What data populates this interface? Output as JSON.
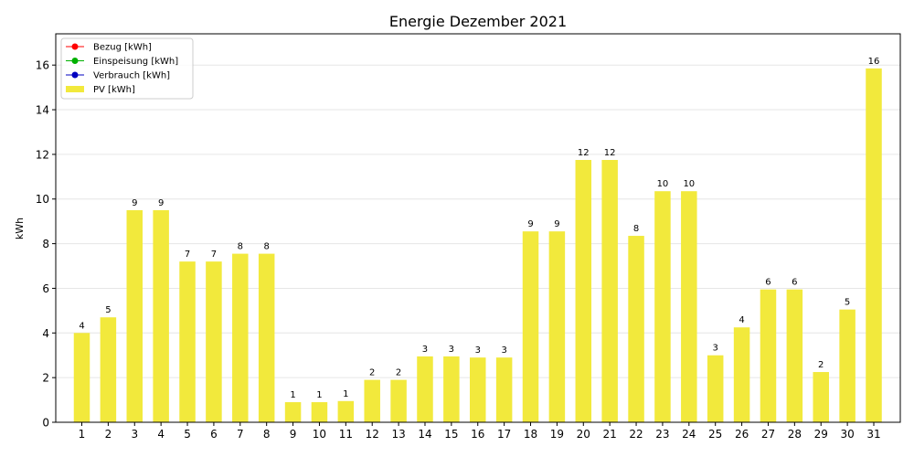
{
  "chart_data": {
    "type": "bar",
    "title": "Energie Dezember 2021",
    "xlabel": "",
    "ylabel": "kWh",
    "ylim": [
      0,
      17.4
    ],
    "yticks": [
      0,
      2,
      4,
      6,
      8,
      10,
      12,
      14,
      16
    ],
    "grid": "horizontal",
    "legend_position": "top-left",
    "categories": [
      "1",
      "2",
      "3",
      "4",
      "5",
      "6",
      "7",
      "8",
      "9",
      "10",
      "11",
      "12",
      "13",
      "14",
      "15",
      "16",
      "17",
      "18",
      "19",
      "20",
      "21",
      "22",
      "23",
      "24",
      "25",
      "26",
      "27",
      "28",
      "29",
      "30",
      "31"
    ],
    "series": [
      {
        "name": "PV [kWh]",
        "color": "#f2e93c",
        "values": [
          4.0,
          4.7,
          9.5,
          9.5,
          7.2,
          7.2,
          7.55,
          7.55,
          0.9,
          0.9,
          0.95,
          1.9,
          1.9,
          2.95,
          2.95,
          2.9,
          2.9,
          8.55,
          8.55,
          11.75,
          11.75,
          8.35,
          10.35,
          10.35,
          3.0,
          4.25,
          5.95,
          5.95,
          2.25,
          5.05,
          15.85
        ],
        "labels": [
          "4",
          "5",
          "9",
          "9",
          "7",
          "7",
          "8",
          "8",
          "1",
          "1",
          "1",
          "2",
          "2",
          "3",
          "3",
          "3",
          "3",
          "9",
          "9",
          "12",
          "12",
          "8",
          "10",
          "10",
          "3",
          "4",
          "6",
          "6",
          "2",
          "5",
          "16"
        ]
      }
    ],
    "legend": [
      {
        "label": "Bezug [kWh]",
        "color": "#ff0000",
        "kind": "line-marker"
      },
      {
        "label": "Einspeisung [kWh]",
        "color": "#00b000",
        "kind": "line-marker"
      },
      {
        "label": "Verbrauch [kWh]",
        "color": "#0000c0",
        "kind": "line-marker"
      },
      {
        "label": "PV [kWh]",
        "color": "#f2e93c",
        "kind": "bar"
      }
    ]
  }
}
